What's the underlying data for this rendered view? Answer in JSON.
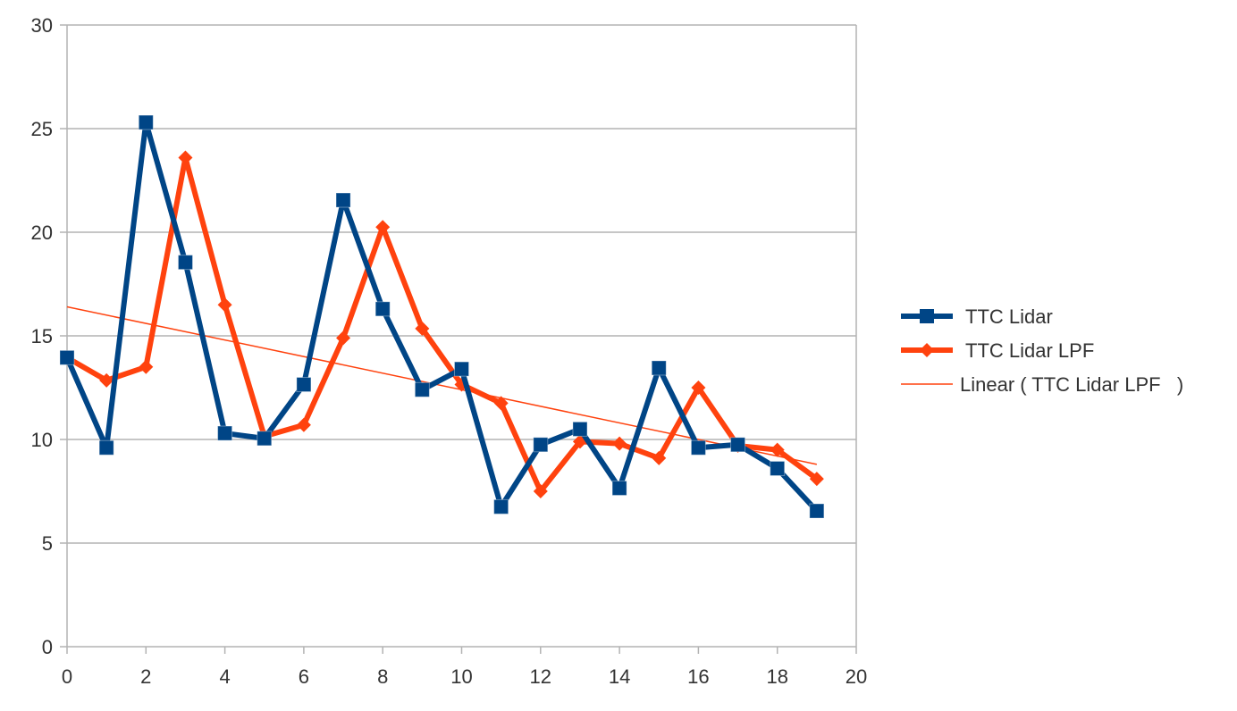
{
  "chart_data": {
    "type": "line",
    "title": "",
    "xlabel": "",
    "ylabel": "",
    "xlim": [
      0,
      20
    ],
    "ylim": [
      0,
      30
    ],
    "x_ticks": [
      0,
      2,
      4,
      6,
      8,
      10,
      12,
      14,
      16,
      18,
      20
    ],
    "y_ticks": [
      0,
      5,
      10,
      15,
      20,
      25,
      30
    ],
    "grid": "horizontal",
    "legend_position": "right",
    "x": [
      0,
      1,
      2,
      3,
      4,
      5,
      6,
      7,
      8,
      9,
      10,
      11,
      12,
      13,
      14,
      15,
      16,
      17,
      18,
      19
    ],
    "series": [
      {
        "name": "TTC Lidar",
        "color": "#004586",
        "marker": "square",
        "values": [
          13.95,
          9.6,
          25.3,
          18.55,
          10.3,
          10.05,
          12.65,
          21.55,
          16.3,
          12.4,
          13.4,
          6.75,
          9.75,
          10.5,
          7.65,
          13.45,
          9.6,
          9.75,
          8.6,
          6.55
        ]
      },
      {
        "name": "TTC Lidar LPF",
        "color": "#ff420e",
        "marker": "diamond",
        "values": [
          13.95,
          12.85,
          13.5,
          23.6,
          16.5,
          10.15,
          10.7,
          14.9,
          20.25,
          15.35,
          12.65,
          11.75,
          7.5,
          9.9,
          9.8,
          9.1,
          12.5,
          9.7,
          9.5,
          8.1
        ]
      }
    ],
    "trendline": {
      "name": "Linear ( TTC Lidar LPF   )",
      "color": "#ff420e",
      "x_range": [
        0,
        19
      ],
      "y_start": 16.4,
      "y_end": 8.8
    }
  }
}
